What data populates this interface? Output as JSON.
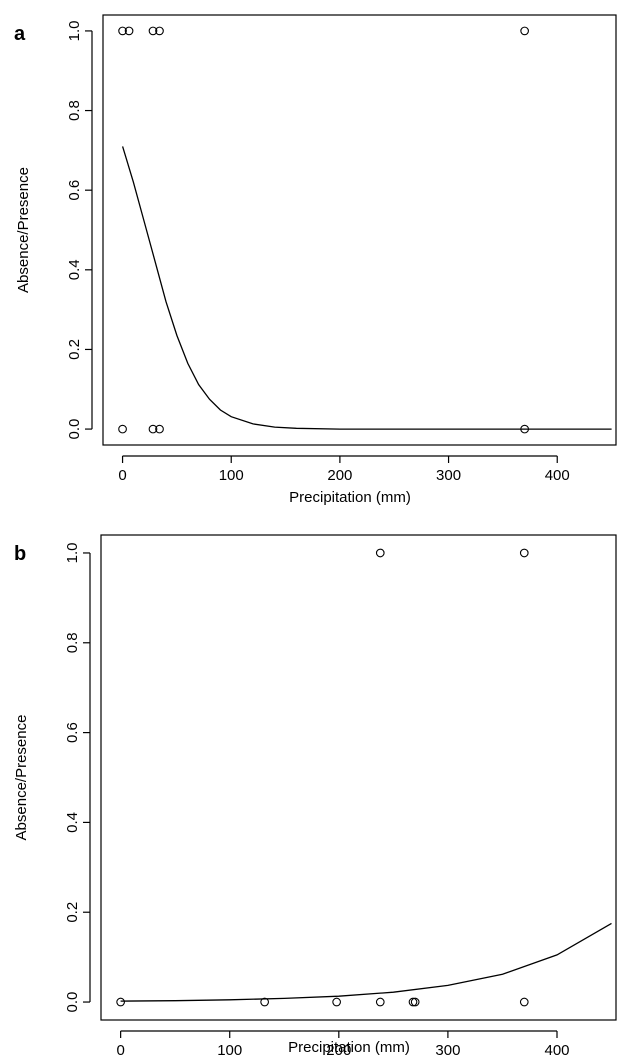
{
  "chart_data": [
    {
      "type": "scatter",
      "panel_label": "a",
      "xlabel": "Precipitation (mm)",
      "ylabel": "Absence/Presence",
      "xlim": [
        -18,
        455
      ],
      "ylim": [
        -0.04,
        1.04
      ],
      "xticks": [
        0,
        100,
        200,
        300,
        400
      ],
      "yticks": [
        0.0,
        0.2,
        0.4,
        0.6,
        0.8,
        1.0
      ],
      "ytick_labels": [
        "0.0",
        "0.2",
        "0.4",
        "0.6",
        "0.8",
        "1.0"
      ],
      "points": [
        {
          "x": 0,
          "y": 1
        },
        {
          "x": 6,
          "y": 1
        },
        {
          "x": 28,
          "y": 1
        },
        {
          "x": 34,
          "y": 1
        },
        {
          "x": 370,
          "y": 1
        },
        {
          "x": 0,
          "y": 0
        },
        {
          "x": 28,
          "y": 0
        },
        {
          "x": 34,
          "y": 0
        },
        {
          "x": 370,
          "y": 0
        }
      ],
      "fitted_curve": {
        "x": [
          0,
          10,
          20,
          30,
          40,
          50,
          60,
          70,
          80,
          90,
          100,
          120,
          140,
          160,
          200,
          250,
          300,
          350,
          400,
          450
        ],
        "y": [
          0.71,
          0.62,
          0.52,
          0.42,
          0.32,
          0.235,
          0.165,
          0.112,
          0.075,
          0.048,
          0.031,
          0.013,
          0.005,
          0.002,
          0.0,
          0.0,
          0.0,
          0.0,
          0.0,
          0.0
        ]
      },
      "grid": false
    },
    {
      "type": "scatter",
      "panel_label": "b",
      "xlabel": "Precipitation (mm)",
      "ylabel": "Absence/Presence",
      "xlim": [
        -18,
        455
      ],
      "ylim": [
        -0.04,
        1.04
      ],
      "xticks": [
        0,
        100,
        200,
        300,
        400
      ],
      "yticks": [
        0.0,
        0.2,
        0.4,
        0.6,
        0.8,
        1.0
      ],
      "ytick_labels": [
        "0.0",
        "0.2",
        "0.4",
        "0.6",
        "0.8",
        "1.0"
      ],
      "points": [
        {
          "x": 238,
          "y": 1
        },
        {
          "x": 370,
          "y": 1
        },
        {
          "x": 0,
          "y": 0
        },
        {
          "x": 132,
          "y": 0
        },
        {
          "x": 198,
          "y": 0
        },
        {
          "x": 238,
          "y": 0
        },
        {
          "x": 268,
          "y": 0
        },
        {
          "x": 270,
          "y": 0
        },
        {
          "x": 370,
          "y": 0
        }
      ],
      "fitted_curve": {
        "x": [
          0,
          50,
          100,
          150,
          200,
          250,
          300,
          350,
          400,
          450
        ],
        "y": [
          0.002,
          0.003,
          0.005,
          0.008,
          0.013,
          0.022,
          0.037,
          0.062,
          0.105,
          0.175
        ]
      },
      "grid": false
    }
  ]
}
